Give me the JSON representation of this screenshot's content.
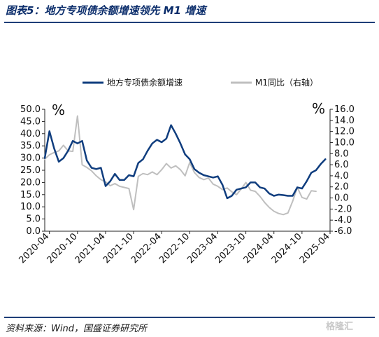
{
  "title": "图表5：地方专项债余额增速领先 M1 增速",
  "source": "资料来源：Wind，国盛证券研究所",
  "watermark": "格隆汇",
  "chart_data": {
    "type": "line",
    "title": "",
    "xlabel": "",
    "ylabel_left": "%",
    "ylabel_right": "%",
    "ylim_left": [
      0,
      50
    ],
    "ylim_right": [
      -6,
      16
    ],
    "yticks_left": [
      "50.0",
      "45.0",
      "40.0",
      "35.0",
      "30.0",
      "25.0",
      "20.0",
      "15.0",
      "10.0",
      "5.0",
      "0.0"
    ],
    "yticks_right": [
      "16.0",
      "14.0",
      "12.0",
      "10.0",
      "8.0",
      "6.0",
      "4.0",
      "2.0",
      "0.0",
      "-2.0",
      "-4.0",
      "-6.0"
    ],
    "x_ticks": [
      "2020-04",
      "2020-10",
      "2021-04",
      "2021-10",
      "2022-04",
      "2022-10",
      "2023-04",
      "2023-10",
      "2024-04",
      "2024-10",
      "2025-04"
    ],
    "legend_position": "top",
    "series": [
      {
        "name": "地方专项债余额增速",
        "axis": "left",
        "color": "#0f3d7e",
        "x": [
          "2020-03",
          "2020-04",
          "2020-05",
          "2020-06",
          "2020-07",
          "2020-08",
          "2020-09",
          "2020-10",
          "2020-11",
          "2020-12",
          "2021-01",
          "2021-02",
          "2021-03",
          "2021-04",
          "2021-05",
          "2021-06",
          "2021-07",
          "2021-08",
          "2021-09",
          "2021-10",
          "2021-11",
          "2021-12",
          "2022-01",
          "2022-02",
          "2022-03",
          "2022-04",
          "2022-05",
          "2022-06",
          "2022-07",
          "2022-08",
          "2022-09",
          "2022-10",
          "2022-11",
          "2022-12",
          "2023-01",
          "2023-02",
          "2023-03",
          "2023-04",
          "2023-05",
          "2023-06",
          "2023-07",
          "2023-08",
          "2023-09",
          "2023-10",
          "2023-11",
          "2023-12",
          "2024-01",
          "2024-02",
          "2024-03",
          "2024-04",
          "2024-05",
          "2024-06",
          "2024-07",
          "2024-08",
          "2024-09",
          "2024-10",
          "2024-11",
          "2024-12",
          "2025-01",
          "2025-02",
          "2025-03"
        ],
        "values": [
          30,
          41,
          34,
          28.5,
          30,
          33,
          37,
          36,
          37,
          29,
          26,
          25.5,
          26,
          18.5,
          20.5,
          23.5,
          21,
          21,
          23,
          22.5,
          28,
          29.5,
          33,
          36,
          37.5,
          36.5,
          38,
          43.5,
          40,
          36,
          31.5,
          29.5,
          25.5,
          24,
          23,
          22.5,
          22,
          22.5,
          19,
          13.5,
          14.5,
          17,
          17.5,
          18,
          20,
          20,
          18,
          17.5,
          15.5,
          14.5,
          15,
          14.8,
          14.5,
          14.5,
          18,
          17.5,
          20.5,
          24,
          25,
          27.5,
          29.5
        ]
      },
      {
        "name": "M1同比（右轴）",
        "axis": "right",
        "color": "#bfbfbf",
        "x": [
          "2020-03",
          "2020-04",
          "2020-05",
          "2020-06",
          "2020-07",
          "2020-08",
          "2020-09",
          "2020-10",
          "2020-11",
          "2020-12",
          "2021-01",
          "2021-02",
          "2021-03",
          "2021-04",
          "2021-05",
          "2021-06",
          "2021-07",
          "2021-08",
          "2021-09",
          "2021-10",
          "2021-11",
          "2021-12",
          "2022-01",
          "2022-02",
          "2022-03",
          "2022-04",
          "2022-05",
          "2022-06",
          "2022-07",
          "2022-08",
          "2022-09",
          "2022-10",
          "2022-11",
          "2022-12",
          "2023-01",
          "2023-02",
          "2023-03",
          "2023-04",
          "2023-05",
          "2023-06",
          "2023-07",
          "2023-08",
          "2023-09",
          "2023-10",
          "2023-11",
          "2023-12",
          "2024-01",
          "2024-02",
          "2024-03",
          "2024-04",
          "2024-05",
          "2024-06",
          "2024-07",
          "2024-08",
          "2024-09",
          "2024-10",
          "2024-11",
          "2024-12",
          "2025-01",
          "2025-02",
          "2025-03"
        ],
        "values": [
          7,
          7.8,
          8.2,
          8.5,
          9.5,
          8.5,
          8.4,
          14.8,
          6,
          5.5,
          4.9,
          4,
          3.3,
          2.9,
          2.2,
          2.6,
          2.1,
          1.9,
          1.7,
          -2.1,
          3.9,
          4.4,
          4.2,
          4.7,
          4.2,
          5.1,
          6.2,
          5.4,
          5.8,
          5.1,
          4,
          6.4,
          4.6,
          3.7,
          3.3,
          3.6,
          2.5,
          2.1,
          1.5,
          1.8,
          1.1,
          0.6,
          1.6,
          2.8,
          1.4,
          1.2,
          0.3,
          -0.8,
          -1.7,
          -2.4,
          -2.8,
          -3,
          -2.7,
          -0.6,
          1.9,
          0.1,
          -0.2,
          1.3,
          1.2,
          null,
          null
        ]
      }
    ]
  }
}
